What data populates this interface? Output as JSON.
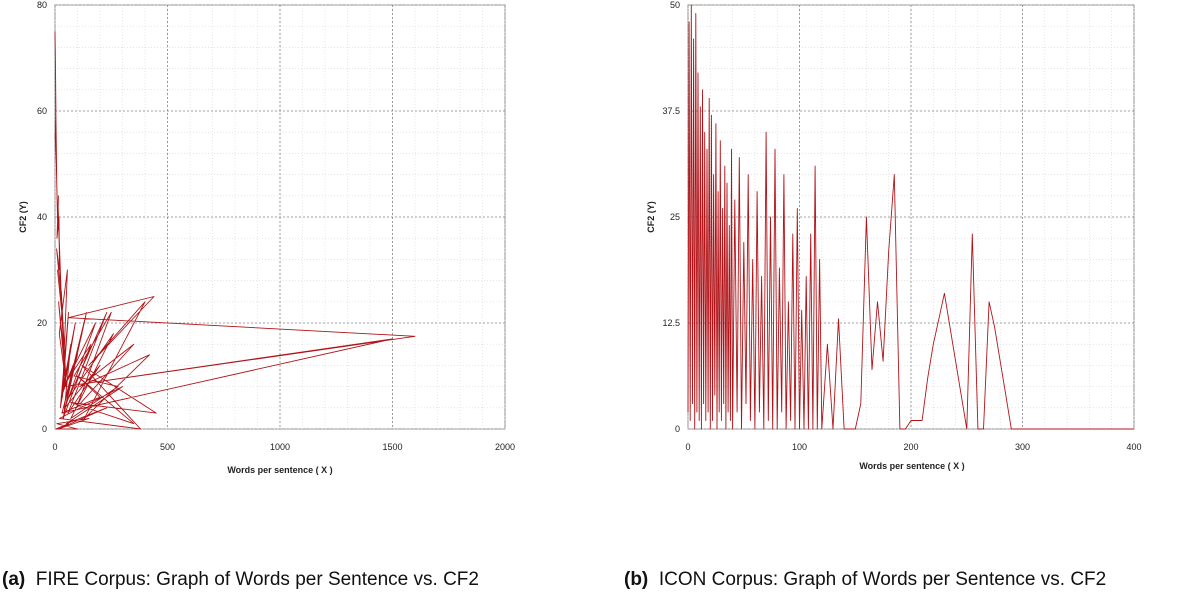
{
  "chart_data": [
    {
      "type": "line",
      "label": "(a)",
      "title": "FIRE Corpus: Graph of Words per Sentence vs. CF2",
      "xlabel": "Words per sentence ( X )",
      "ylabel": "CF2 (Y)",
      "xlim": [
        0,
        2000
      ],
      "ylim": [
        0,
        80
      ],
      "xticks": [
        0,
        500,
        1000,
        1500,
        2000
      ],
      "yticks": [
        0,
        20,
        40,
        60,
        80
      ],
      "minor_x_step": 100,
      "minor_y_step": 4,
      "series_color": "#b01419",
      "series": [
        {
          "name": "CF2",
          "x": [
            0,
            2,
            4,
            1,
            6,
            3,
            8,
            10,
            5,
            12,
            15,
            9,
            18,
            20,
            7,
            25,
            14,
            30,
            11,
            35,
            22,
            40,
            16,
            45,
            28,
            50,
            19,
            55,
            33,
            60,
            24,
            70,
            38,
            80,
            27,
            90,
            42,
            100,
            31,
            120,
            48,
            140,
            36,
            160,
            52,
            180,
            44,
            200,
            58,
            230,
            62,
            260,
            70,
            280,
            85,
            250,
            95,
            350,
            110,
            420,
            130,
            400,
            150,
            440,
            60,
            1600,
            40,
            1500,
            30,
            200,
            100,
            350,
            70,
            450,
            120,
            380,
            20,
            300,
            50,
            230,
            15,
            150,
            8,
            100,
            5,
            60,
            3,
            30,
            2
          ],
          "y": [
            75,
            68,
            60,
            55,
            50,
            62,
            46,
            42,
            52,
            38,
            44,
            36,
            40,
            30,
            34,
            26,
            42,
            22,
            30,
            20,
            28,
            14,
            24,
            10,
            26,
            8,
            18,
            30,
            6,
            22,
            4,
            16,
            2,
            12,
            6,
            20,
            8,
            14,
            3,
            18,
            6,
            22,
            2,
            16,
            9,
            20,
            4,
            12,
            3,
            22,
            6,
            18,
            2,
            8,
            10,
            22,
            4,
            16,
            8,
            14,
            2,
            24,
            12,
            25,
            21,
            17.5,
            8,
            17,
            3,
            6,
            10,
            1,
            5,
            3,
            12,
            0,
            2,
            8,
            1,
            4,
            0,
            2,
            1,
            0,
            0,
            1,
            0,
            0,
            0
          ]
        }
      ]
    },
    {
      "type": "line",
      "label": "(b)",
      "title": "ICON Corpus: Graph of Words per Sentence vs. CF2",
      "xlabel": "Words per sentence ( X )",
      "ylabel": "CF2 (Y)",
      "xlim": [
        0,
        400
      ],
      "ylim": [
        0,
        50
      ],
      "xticks": [
        0,
        100,
        200,
        300,
        400
      ],
      "yticks": [
        0,
        12.5,
        25,
        37.5,
        50
      ],
      "minor_x_step": 20,
      "minor_y_step": 2.5,
      "series_color": "#b01419",
      "series": [
        {
          "name": "CF2",
          "x": [
            0,
            1,
            2,
            3,
            4,
            5,
            6,
            7,
            8,
            9,
            10,
            11,
            12,
            13,
            14,
            15,
            16,
            17,
            18,
            19,
            20,
            21,
            22,
            23,
            24,
            25,
            26,
            27,
            28,
            29,
            30,
            31,
            32,
            33,
            34,
            35,
            36,
            37,
            38,
            39,
            40,
            42,
            44,
            46,
            48,
            50,
            52,
            54,
            56,
            58,
            60,
            62,
            64,
            66,
            68,
            70,
            72,
            74,
            76,
            78,
            80,
            82,
            84,
            86,
            88,
            90,
            92,
            94,
            96,
            98,
            100,
            102,
            104,
            106,
            108,
            110,
            112,
            114,
            116,
            118,
            120,
            125,
            130,
            135,
            140,
            145,
            150,
            155,
            160,
            165,
            170,
            175,
            180,
            185,
            190,
            195,
            200,
            205,
            210,
            215,
            220,
            225,
            230,
            235,
            240,
            245,
            250,
            255,
            260,
            265,
            270,
            275,
            280,
            285,
            290,
            295,
            300,
            305,
            310,
            315,
            320,
            400
          ],
          "y": [
            2,
            48,
            1,
            50,
            3,
            46,
            0,
            49,
            2,
            42,
            1,
            38,
            0,
            40,
            3,
            35,
            1,
            33,
            2,
            39,
            0,
            37,
            1,
            30,
            4,
            36,
            0,
            28,
            2,
            34,
            1,
            26,
            3,
            31,
            0,
            29,
            2,
            24,
            1,
            33,
            0,
            27,
            2,
            32,
            0,
            22,
            3,
            30,
            1,
            20,
            0,
            28,
            2,
            18,
            0,
            35,
            1,
            25,
            0,
            33,
            0,
            19,
            2,
            30,
            0,
            15,
            1,
            23,
            0,
            26,
            0,
            14,
            0,
            18,
            0,
            23,
            0,
            31,
            0,
            20,
            0,
            10,
            0,
            13,
            0,
            0,
            0,
            3,
            25,
            7,
            15,
            8,
            21,
            30,
            0,
            0,
            1,
            1,
            1,
            6,
            10,
            13,
            16,
            12,
            8,
            4,
            0,
            23,
            0,
            0,
            15,
            12,
            8,
            4,
            0,
            0,
            0,
            0,
            0,
            0,
            0,
            0
          ]
        }
      ]
    }
  ]
}
